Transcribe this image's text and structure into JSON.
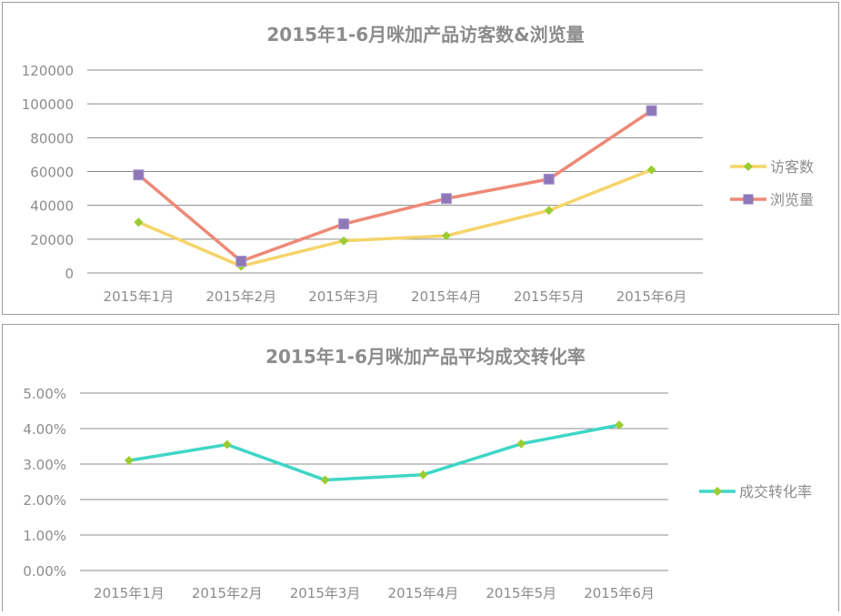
{
  "charts": [
    {
      "title": "2015年1-6月咪加产品访客数&浏览量",
      "categories": [
        "2015年1月",
        "2015年2月",
        "2015年3月",
        "2015年4月",
        "2015年5月",
        "2015年6月"
      ],
      "yticks": [
        "0",
        "20000",
        "40000",
        "60000",
        "80000",
        "100000",
        "120000"
      ],
      "legend": [
        "访客数",
        "浏览量"
      ]
    },
    {
      "title": "2015年1-6月咪加产品平均成交转化率",
      "categories": [
        "2015年1月",
        "2015年2月",
        "2015年3月",
        "2015年4月",
        "2015年5月",
        "2015年6月"
      ],
      "yticks": [
        "0.00%",
        "1.00%",
        "2.00%",
        "3.00%",
        "4.00%",
        "5.00%"
      ],
      "legend": [
        "成交转化率"
      ]
    }
  ],
  "chart_data": [
    {
      "type": "line",
      "title": "2015年1-6月咪加产品访客数&浏览量",
      "xlabel": "",
      "ylabel": "",
      "categories": [
        "2015年1月",
        "2015年2月",
        "2015年3月",
        "2015年4月",
        "2015年5月",
        "2015年6月"
      ],
      "ylim": [
        0,
        120000
      ],
      "grid": true,
      "legend_position": "right",
      "series": [
        {
          "name": "访客数",
          "values": [
            30000,
            4000,
            19000,
            22000,
            37000,
            61000
          ],
          "color": "#f5d46a",
          "marker": "diamond",
          "marker_color": "#9acd32"
        },
        {
          "name": "浏览量",
          "values": [
            58000,
            7000,
            29000,
            44000,
            55500,
            96000
          ],
          "color": "#ee8977",
          "marker": "square",
          "marker_color": "#8e78b8"
        }
      ]
    },
    {
      "type": "line",
      "title": "2015年1-6月咪加产品平均成交转化率",
      "xlabel": "",
      "ylabel": "",
      "categories": [
        "2015年1月",
        "2015年2月",
        "2015年3月",
        "2015年4月",
        "2015年5月",
        "2015年6月"
      ],
      "ylim": [
        0,
        5
      ],
      "yunit": "%",
      "grid": true,
      "legend_position": "right",
      "series": [
        {
          "name": "成交转化率",
          "values": [
            3.1,
            3.55,
            2.55,
            2.7,
            3.57,
            4.1
          ],
          "color": "#3fd6c6",
          "marker": "diamond",
          "marker_color": "#9acd32"
        }
      ]
    }
  ]
}
